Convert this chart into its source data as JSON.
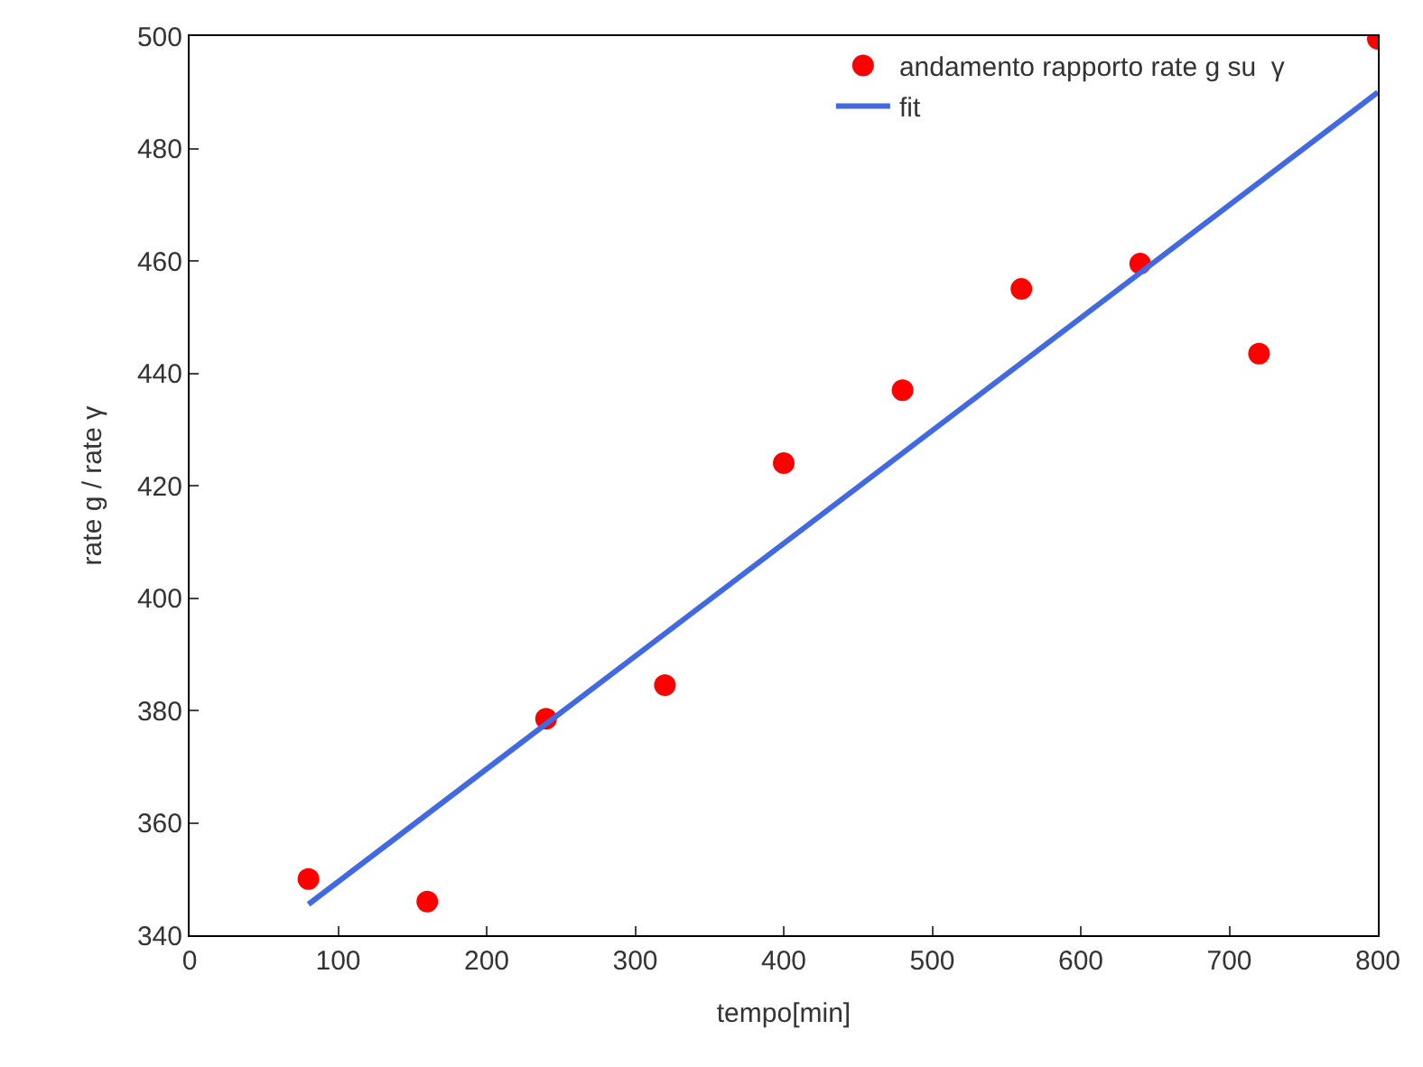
{
  "chart_data": {
    "type": "scatter",
    "xlabel": "tempo[min]",
    "ylabel": "rate g / rate γ",
    "x": [
      80,
      160,
      240,
      320,
      400,
      480,
      560,
      640,
      720,
      800
    ],
    "series": [
      {
        "name": "andamento rapporto rate g su  γ",
        "color": "#ff0000",
        "marker": "circle",
        "values": [
          350,
          346,
          378.5,
          384.5,
          424,
          437,
          455,
          459.5,
          443.5,
          499.5
        ]
      },
      {
        "name": "fit",
        "color": "#4169e1",
        "type": "line",
        "line_style": "solid",
        "x": [
          80,
          800
        ],
        "values": [
          345.5,
          490
        ]
      }
    ],
    "xlim": [
      0,
      800
    ],
    "xticks": [
      0,
      100,
      200,
      300,
      400,
      500,
      600,
      700,
      800
    ],
    "ylim": [
      340,
      500
    ],
    "yticks": [
      340,
      360,
      380,
      400,
      420,
      440,
      460,
      480,
      500
    ],
    "legend": "top right"
  }
}
